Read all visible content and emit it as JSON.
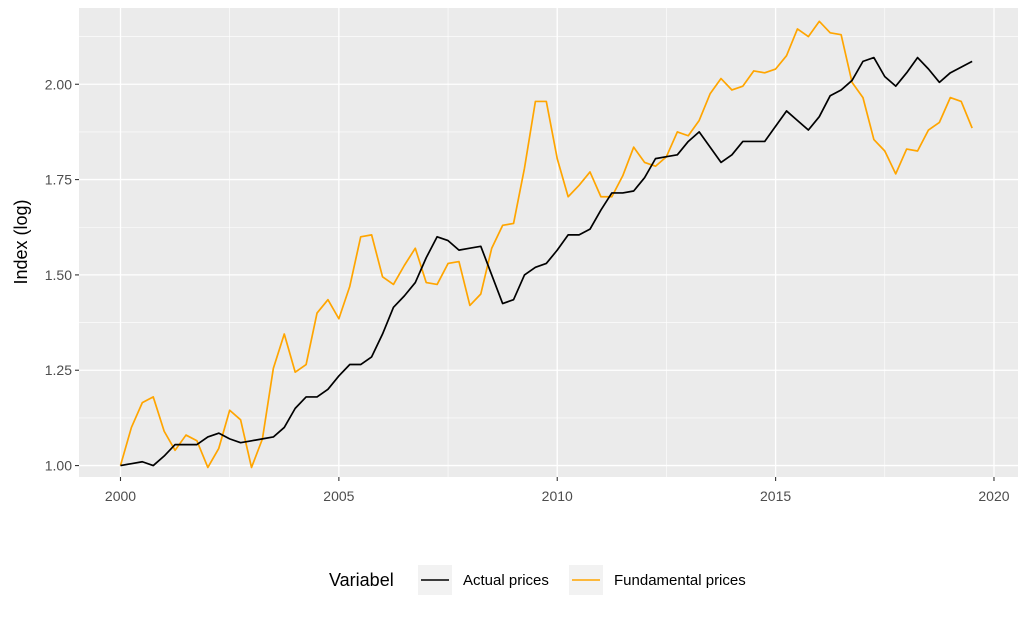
{
  "chart_data": {
    "type": "line",
    "title": "",
    "xlabel": "",
    "ylabel": "Index (log)",
    "xlim": [
      1999.05,
      2020.55
    ],
    "ylim": [
      0.97,
      2.2
    ],
    "x_ticks": [
      2000,
      2005,
      2010,
      2015,
      2020
    ],
    "x_tick_labels": [
      "2000",
      "2005",
      "2010",
      "2015",
      "2020"
    ],
    "y_ticks": [
      1.0,
      1.25,
      1.5,
      1.75,
      2.0
    ],
    "y_tick_labels": [
      "1.00",
      "1.25",
      "1.50",
      "1.75",
      "2.00"
    ],
    "grid": true,
    "legend": {
      "title": "Variabel",
      "position": "bottom",
      "entries": [
        "Actual prices",
        "Fundamental prices"
      ]
    },
    "colors": {
      "panel_background": "#ebebeb",
      "grid": "#ffffff",
      "actual": "#000000",
      "fundamental": "#ffa500"
    },
    "x": [
      2000.0,
      2000.25,
      2000.5,
      2000.75,
      2001.0,
      2001.25,
      2001.5,
      2001.75,
      2002.0,
      2002.25,
      2002.5,
      2002.75,
      2003.0,
      2003.25,
      2003.5,
      2003.75,
      2004.0,
      2004.25,
      2004.5,
      2004.75,
      2005.0,
      2005.25,
      2005.5,
      2005.75,
      2006.0,
      2006.25,
      2006.5,
      2006.75,
      2007.0,
      2007.25,
      2007.5,
      2007.75,
      2008.0,
      2008.25,
      2008.5,
      2008.75,
      2009.0,
      2009.25,
      2009.5,
      2009.75,
      2010.0,
      2010.25,
      2010.5,
      2010.75,
      2011.0,
      2011.25,
      2011.5,
      2011.75,
      2012.0,
      2012.25,
      2012.5,
      2012.75,
      2013.0,
      2013.25,
      2013.5,
      2013.75,
      2014.0,
      2014.25,
      2014.5,
      2014.75,
      2015.0,
      2015.25,
      2015.5,
      2015.75,
      2016.0,
      2016.25,
      2016.5,
      2016.75,
      2017.0,
      2017.25,
      2017.5,
      2017.75,
      2018.0,
      2018.25,
      2018.5,
      2018.75,
      2019.0,
      2019.25,
      2019.5
    ],
    "series": [
      {
        "name": "Actual prices",
        "values": [
          1.0,
          1.005,
          1.01,
          1.0,
          1.025,
          1.055,
          1.055,
          1.055,
          1.075,
          1.085,
          1.07,
          1.06,
          1.065,
          1.07,
          1.075,
          1.1,
          1.15,
          1.18,
          1.18,
          1.2,
          1.235,
          1.265,
          1.265,
          1.285,
          1.345,
          1.415,
          1.445,
          1.48,
          1.545,
          1.6,
          1.59,
          1.565,
          1.57,
          1.575,
          1.5,
          1.425,
          1.435,
          1.5,
          1.52,
          1.53,
          1.565,
          1.605,
          1.605,
          1.62,
          1.67,
          1.715,
          1.715,
          1.72,
          1.755,
          1.805,
          1.81,
          1.815,
          1.85,
          1.875,
          1.835,
          1.795,
          1.815,
          1.85,
          1.85,
          1.85,
          1.89,
          1.93,
          1.905,
          1.88,
          1.915,
          1.97,
          1.985,
          2.01,
          2.06,
          2.07,
          2.02,
          1.995,
          2.03,
          2.07,
          2.04,
          2.005,
          2.03,
          2.045,
          2.06
        ]
      },
      {
        "name": "Fundamental prices",
        "values": [
          1.0,
          1.1,
          1.165,
          1.18,
          1.09,
          1.04,
          1.08,
          1.065,
          0.995,
          1.045,
          1.145,
          1.12,
          0.995,
          1.07,
          1.255,
          1.345,
          1.245,
          1.265,
          1.4,
          1.435,
          1.385,
          1.47,
          1.6,
          1.605,
          1.495,
          1.475,
          1.525,
          1.57,
          1.48,
          1.475,
          1.53,
          1.535,
          1.42,
          1.45,
          1.57,
          1.63,
          1.635,
          1.78,
          1.955,
          1.955,
          1.805,
          1.705,
          1.735,
          1.77,
          1.705,
          1.705,
          1.76,
          1.835,
          1.795,
          1.785,
          1.81,
          1.875,
          1.865,
          1.905,
          1.975,
          2.015,
          1.985,
          1.995,
          2.035,
          2.03,
          2.04,
          2.075,
          2.145,
          2.125,
          2.165,
          2.135,
          2.13,
          2.005,
          1.965,
          1.855,
          1.825,
          1.765,
          1.83,
          1.825,
          1.88,
          1.9,
          1.965,
          1.955,
          1.885
        ]
      }
    ]
  }
}
